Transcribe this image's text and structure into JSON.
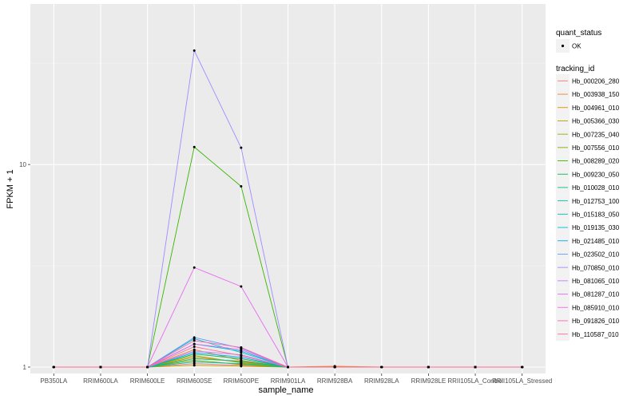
{
  "chart_data": {
    "type": "line",
    "xlabel": "sample_name",
    "ylabel": "FPKM + 1",
    "y_scale": "log10",
    "ylim": [
      0.93,
      62
    ],
    "y_ticks": [
      1,
      10
    ],
    "y_tick_labels": [
      "1",
      "10"
    ],
    "grid": true,
    "legend_position": "right",
    "categories": [
      "PB350LA",
      "RRIM600LA",
      "RRIM600LE",
      "RRIM600SE",
      "RRIM600PE",
      "RRIM901LA",
      "RRIM928BA",
      "RRIM928LA",
      "RRIM928LE",
      "RRII105LA_Control",
      "RRII105LA_Stressed"
    ],
    "point_legend": {
      "title": "quant_status",
      "items": [
        {
          "label": "OK",
          "color": "#000000"
        }
      ]
    },
    "series_legend_title": "tracking_id",
    "series": [
      {
        "name": "Hb_000206_280",
        "color": "#F8766D",
        "values": [
          1,
          1,
          1,
          1.04,
          1.02,
          1,
          1,
          1,
          1,
          1,
          1
        ]
      },
      {
        "name": "Hb_003938_150",
        "color": "#EA8331",
        "values": [
          1,
          1,
          1,
          1.22,
          1.08,
          1,
          1.01,
          1,
          1,
          1,
          1
        ]
      },
      {
        "name": "Hb_004961_010",
        "color": "#D89000",
        "values": [
          1,
          1,
          1,
          1.12,
          1.06,
          1,
          1,
          1,
          1,
          1,
          1
        ]
      },
      {
        "name": "Hb_005366_030",
        "color": "#C09B00",
        "values": [
          1,
          1,
          1,
          1.02,
          1.01,
          1,
          1,
          1,
          1,
          1,
          1
        ]
      },
      {
        "name": "Hb_007235_040",
        "color": "#A3A500",
        "values": [
          1,
          1,
          1,
          1.14,
          1.05,
          1,
          1,
          1,
          1,
          1,
          1
        ]
      },
      {
        "name": "Hb_007556_010",
        "color": "#7CAE00",
        "values": [
          1,
          1,
          1,
          1.08,
          1.03,
          1,
          1,
          1,
          1,
          1,
          1
        ]
      },
      {
        "name": "Hb_008289_020",
        "color": "#39B600",
        "values": [
          1,
          1,
          1,
          12.2,
          7.8,
          1,
          1,
          1,
          1,
          1,
          1
        ]
      },
      {
        "name": "Hb_009230_050",
        "color": "#00BB4E",
        "values": [
          1,
          1,
          1,
          1.16,
          1.1,
          1,
          1,
          1,
          1,
          1,
          1
        ]
      },
      {
        "name": "Hb_010028_010",
        "color": "#00BF7D",
        "values": [
          1,
          1,
          1,
          1.1,
          1.07,
          1,
          1,
          1,
          1,
          1,
          1
        ]
      },
      {
        "name": "Hb_012753_100",
        "color": "#00C1A3",
        "values": [
          1,
          1,
          1,
          1.06,
          1.04,
          1,
          1,
          1,
          1,
          1,
          1
        ]
      },
      {
        "name": "Hb_015183_050",
        "color": "#00BFC4",
        "values": [
          1,
          1,
          1,
          1.38,
          1.18,
          1,
          1,
          1,
          1,
          1,
          1
        ]
      },
      {
        "name": "Hb_019135_030",
        "color": "#00B8E7",
        "values": [
          1,
          1,
          1,
          1.3,
          1.2,
          1,
          1,
          1,
          1,
          1,
          1
        ]
      },
      {
        "name": "Hb_021485_010",
        "color": "#00A9FF",
        "values": [
          1,
          1,
          1,
          1.18,
          1.12,
          1,
          1,
          1,
          1,
          1,
          1
        ]
      },
      {
        "name": "Hb_023502_010",
        "color": "#619CFF",
        "values": [
          1,
          1,
          1,
          1.4,
          1.24,
          1,
          1,
          1,
          1,
          1,
          1
        ]
      },
      {
        "name": "Hb_070850_010",
        "color": "#9F8CFF",
        "values": [
          1,
          1,
          1,
          36.5,
          12.1,
          1,
          1,
          1,
          1,
          1,
          1
        ]
      },
      {
        "name": "Hb_081065_010",
        "color": "#C77CFF",
        "values": [
          1,
          1,
          1,
          1.2,
          1.15,
          1,
          1,
          1,
          1,
          1,
          1
        ]
      },
      {
        "name": "Hb_081287_010",
        "color": "#E76BF3",
        "values": [
          1,
          1,
          1,
          3.1,
          2.5,
          1,
          1,
          1,
          1,
          1,
          1
        ]
      },
      {
        "name": "Hb_085910_010",
        "color": "#F564E3",
        "values": [
          1,
          1,
          1,
          1.3,
          1.22,
          1,
          1,
          1,
          1,
          1,
          1
        ]
      },
      {
        "name": "Hb_091826_010",
        "color": "#FF64B0",
        "values": [
          1,
          1,
          1,
          1.35,
          1.25,
          1,
          1,
          1,
          1,
          1,
          1
        ]
      },
      {
        "name": "Hb_110587_010",
        "color": "#FF6C91",
        "values": [
          1,
          1,
          1,
          1.26,
          1.14,
          1,
          1,
          1,
          1,
          1,
          1
        ]
      }
    ]
  }
}
